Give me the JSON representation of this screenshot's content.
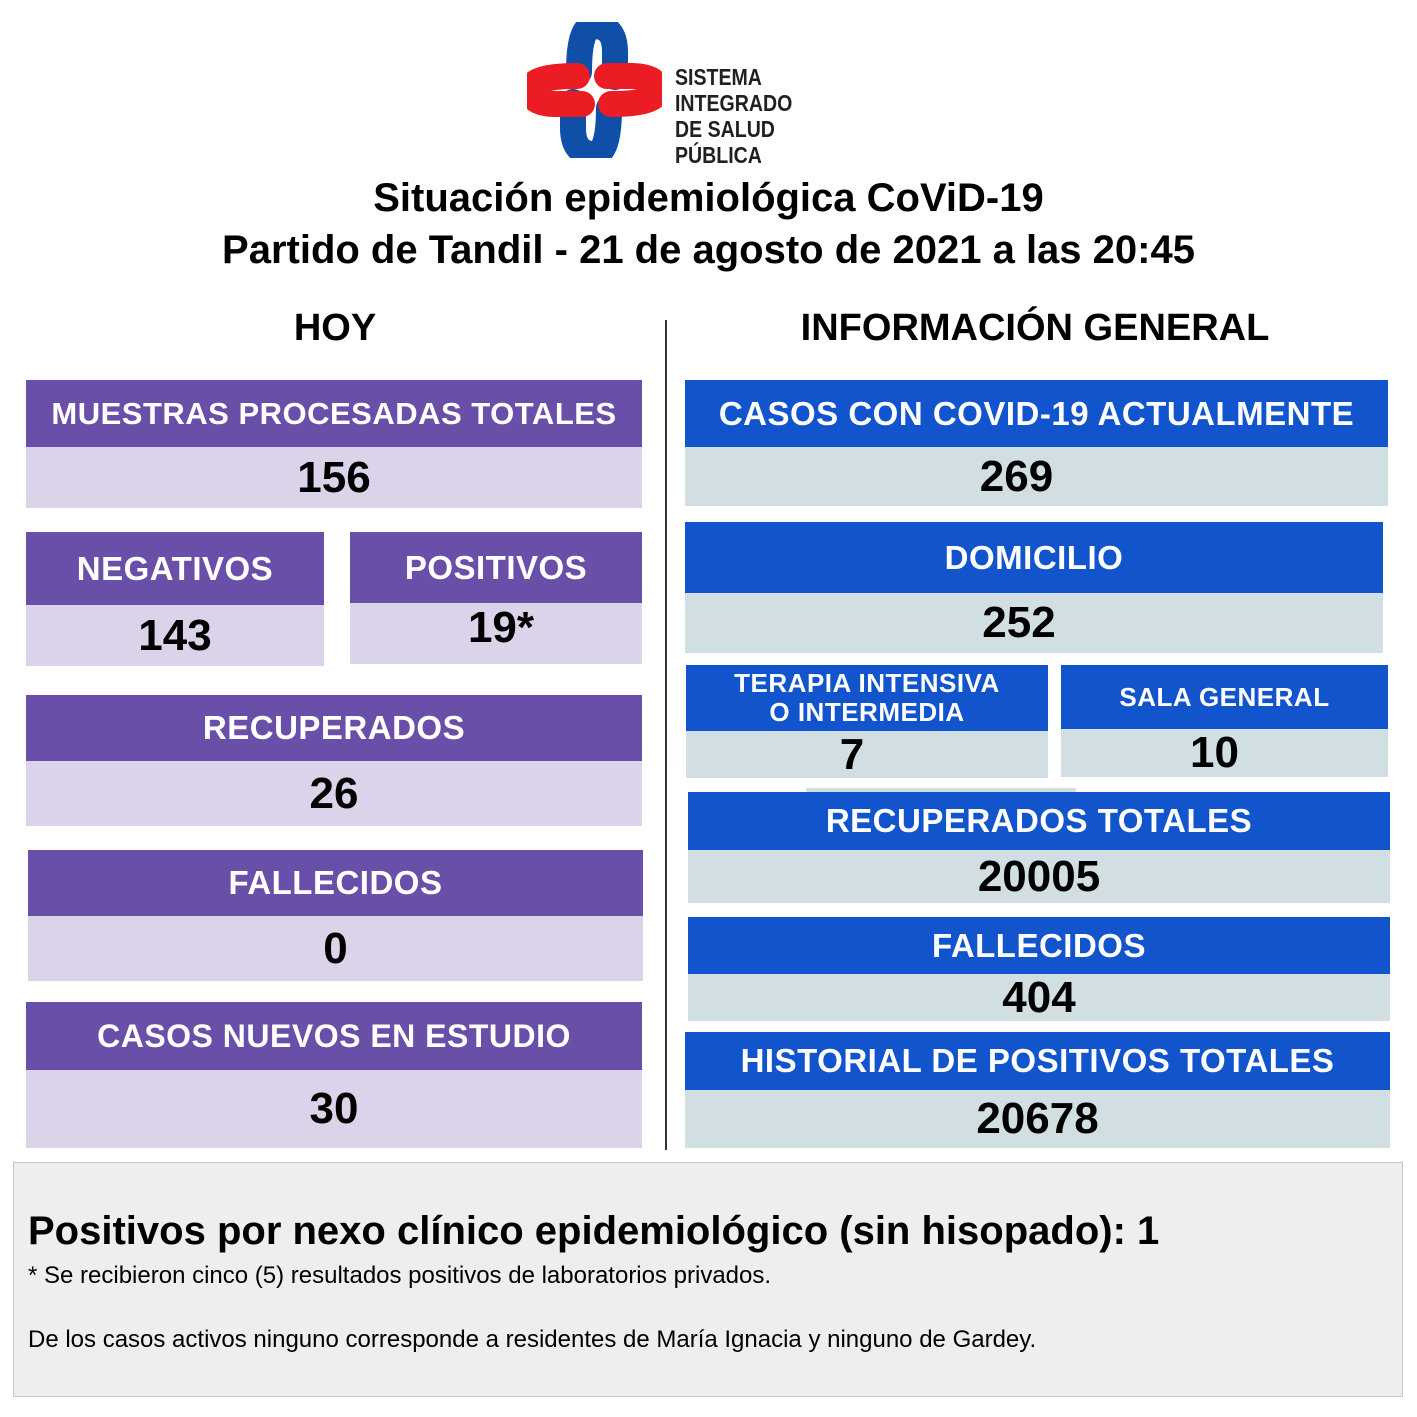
{
  "logo": {
    "text_line1": "SISTEMA INTEGRADO",
    "text_line2": "DE SALUD PÚBLICA",
    "colors": {
      "red": "#ec1c24",
      "blue": "#0f4fa8"
    }
  },
  "title": {
    "line1": "Situación epidemiológica CoViD-19",
    "line2": "Partido de Tandil - 21 de agosto de 2021 a las 20:45"
  },
  "colors": {
    "purple": "#6a4fa8",
    "purple_light": "#dbd3e9",
    "blue": "#1254cc",
    "blue_light": "#d1dfe3"
  },
  "hoy": {
    "heading": "HOY",
    "muestras": {
      "label": "MUESTRAS PROCESADAS TOTALES",
      "value": "156"
    },
    "negativos": {
      "label": "NEGATIVOS",
      "value": "143"
    },
    "positivos": {
      "label": "POSITIVOS",
      "value": "19*"
    },
    "recuperados": {
      "label": "RECUPERADOS",
      "value": "26"
    },
    "fallecidos": {
      "label": "FALLECIDOS",
      "value": "0"
    },
    "en_estudio": {
      "label": "CASOS NUEVOS EN ESTUDIO",
      "value": "30"
    }
  },
  "general": {
    "heading": "INFORMACIÓN GENERAL",
    "actuales": {
      "label": "CASOS CON COVID-19 ACTUALMENTE",
      "value": "269"
    },
    "domicilio": {
      "label": "DOMICILIO",
      "value": "252"
    },
    "terapia": {
      "label_line1": "TERAPIA INTENSIVA",
      "label_line2": "O INTERMEDIA",
      "value": "7"
    },
    "sala": {
      "label": "SALA GENERAL",
      "value": "10"
    },
    "recuperados": {
      "label": "RECUPERADOS TOTALES",
      "value": "20005"
    },
    "fallecidos": {
      "label": "FALLECIDOS",
      "value": "404"
    },
    "historial": {
      "label": "HISTORIAL DE POSITIVOS TOTALES",
      "value": "20678"
    }
  },
  "footer": {
    "nexo": "Positivos por nexo clínico epidemiológico (sin hisopado): 1",
    "note1": "* Se recibieron cinco (5) resultados positivos de laboratorios privados.",
    "note2": "De los casos activos ninguno corresponde a residentes de María Ignacia y ninguno de Gardey."
  }
}
